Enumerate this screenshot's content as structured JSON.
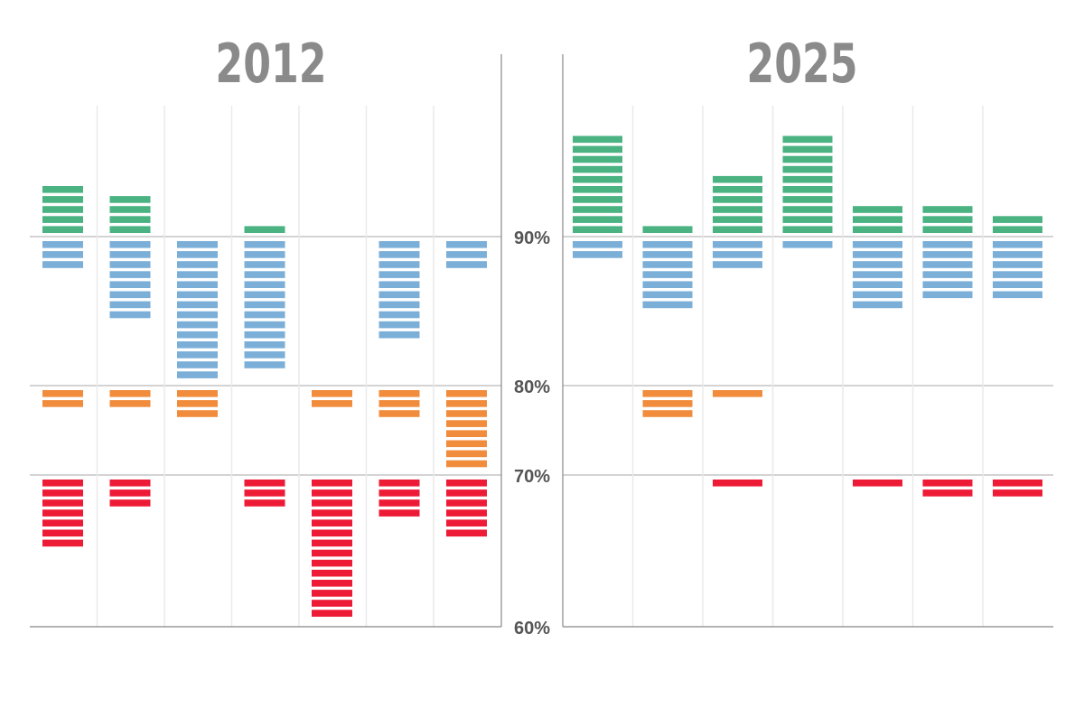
{
  "chart_data": {
    "type": "bar",
    "y_ticks": [
      "90%",
      "80%",
      "70%",
      "60%"
    ],
    "colors": {
      "green": "#4bb382",
      "blue": "#7bafd8",
      "orange": "#f08c3c",
      "red": "#ee1b36",
      "axis": "#888888",
      "grid": "#eaeaea",
      "title": "#8a8a8a"
    },
    "panels": [
      {
        "title": "2012",
        "columns": [
          {
            "green": 5,
            "blue": 3,
            "orange": 2,
            "red": 7
          },
          {
            "green": 4,
            "blue": 8,
            "orange": 2,
            "red": 3
          },
          {
            "green": 0,
            "blue": 14,
            "orange": 3,
            "red": 0
          },
          {
            "green": 1,
            "blue": 13,
            "orange": 0,
            "red": 3
          },
          {
            "green": 0,
            "blue": 0,
            "orange": 2,
            "red": 14
          },
          {
            "green": 0,
            "blue": 10,
            "orange": 3,
            "red": 4
          },
          {
            "green": 0,
            "blue": 3,
            "orange": 8,
            "red": 6
          }
        ]
      },
      {
        "title": "2025",
        "columns": [
          {
            "green": 10,
            "blue": 2,
            "orange": 0,
            "red": 0
          },
          {
            "green": 1,
            "blue": 7,
            "orange": 3,
            "red": 0
          },
          {
            "green": 6,
            "blue": 3,
            "orange": 1,
            "red": 1
          },
          {
            "green": 10,
            "blue": 1,
            "orange": 0,
            "red": 0
          },
          {
            "green": 3,
            "blue": 7,
            "orange": 0,
            "red": 1
          },
          {
            "green": 3,
            "blue": 6,
            "orange": 0,
            "red": 2
          },
          {
            "green": 2,
            "blue": 6,
            "orange": 0,
            "red": 2
          }
        ]
      }
    ],
    "grid": true,
    "legend": "none"
  }
}
